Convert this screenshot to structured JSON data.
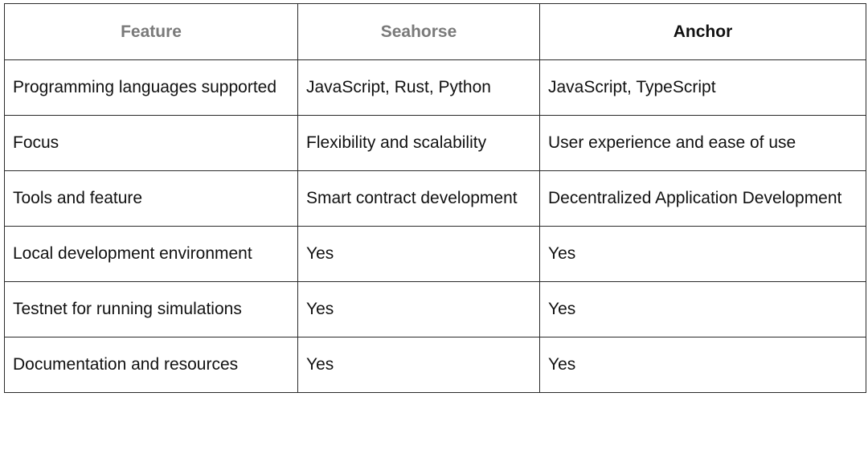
{
  "table": {
    "headers": [
      "Feature",
      "Seahorse",
      "Anchor"
    ],
    "rows": [
      [
        "Programming languages supported",
        "JavaScript, Rust, Python",
        "JavaScript, TypeScript"
      ],
      [
        "Focus",
        "Flexibility and scalability",
        "User experience and ease of use"
      ],
      [
        "Tools and feature",
        "Smart contract development",
        "Decentralized Application Development"
      ],
      [
        "Local development environment",
        "Yes",
        "Yes"
      ],
      [
        "Testnet for running simulations",
        "Yes",
        "Yes"
      ],
      [
        "Documentation and resources",
        "Yes",
        "Yes"
      ]
    ]
  }
}
